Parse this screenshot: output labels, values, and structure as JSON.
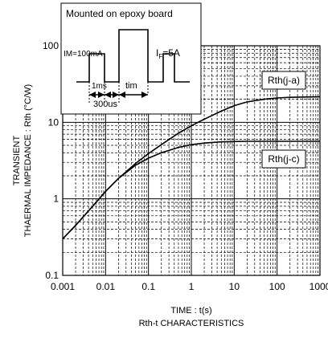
{
  "chart_data": {
    "type": "line",
    "title": "Rth-t CHARACTERISTICS",
    "xlabel": "TIME : t(s)",
    "ylabel_line1": "TRANSIENT",
    "ylabel_line2": "THAERMAL IMPEDANCE : Rth (°C/W)",
    "x_scale": "log",
    "y_scale": "log",
    "xlim": [
      0.001,
      1000
    ],
    "ylim": [
      0.1,
      100
    ],
    "grid": true,
    "x_ticks": [
      {
        "value": 0.001,
        "label": "0.001"
      },
      {
        "value": 0.01,
        "label": "0.01"
      },
      {
        "value": 0.1,
        "label": "0.1"
      },
      {
        "value": 1,
        "label": "1"
      },
      {
        "value": 10,
        "label": "10"
      },
      {
        "value": 100,
        "label": "100"
      },
      {
        "value": 1000,
        "label": "1000"
      }
    ],
    "y_ticks": [
      {
        "value": 0.1,
        "label": "0.1"
      },
      {
        "value": 1,
        "label": "1"
      },
      {
        "value": 10,
        "label": "10"
      },
      {
        "value": 100,
        "label": "100"
      }
    ],
    "series": [
      {
        "name": "Rth(j-a)",
        "x": [
          0.001,
          0.002,
          0.005,
          0.01,
          0.02,
          0.05,
          0.1,
          0.2,
          0.5,
          1,
          2,
          5,
          10,
          20,
          50,
          100,
          200,
          500,
          1000
        ],
        "y": [
          0.3,
          0.45,
          0.8,
          1.25,
          1.85,
          2.9,
          3.9,
          5.1,
          7.2,
          9.0,
          11.0,
          14.0,
          16.5,
          18.5,
          20.0,
          20.8,
          21.2,
          21.4,
          21.5
        ]
      },
      {
        "name": "Rth(j-c)",
        "x": [
          0.001,
          0.002,
          0.005,
          0.01,
          0.02,
          0.05,
          0.1,
          0.2,
          0.5,
          1,
          2,
          5,
          10,
          20,
          50,
          100,
          200,
          500,
          1000
        ],
        "y": [
          0.3,
          0.45,
          0.8,
          1.25,
          1.85,
          2.75,
          3.4,
          4.0,
          4.7,
          5.1,
          5.35,
          5.55,
          5.6,
          5.65,
          5.65,
          5.65,
          5.65,
          5.65,
          5.65
        ]
      }
    ]
  },
  "inset": {
    "title": "Mounted on epoxy board",
    "im_label": "IM=100mA",
    "if_label_main": "I",
    "if_label_sub": "F",
    "if_label_value": "=5A",
    "pulse_label_1ms": "1ms",
    "pulse_label_300us": "300us",
    "pulse_label_tim": "tim"
  }
}
